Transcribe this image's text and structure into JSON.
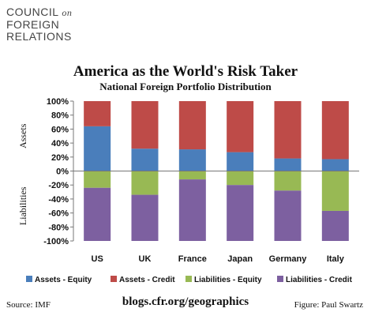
{
  "logo": {
    "line1": "COUNCIL",
    "line1_suffix": "on",
    "line2": "FOREIGN",
    "line3": "RELATIONS"
  },
  "chart_data": {
    "type": "bar",
    "stacked": true,
    "title": "America as the World's Risk Taker",
    "subtitle": "National Foreign Portfolio Distribution",
    "categories": [
      "US",
      "UK",
      "France",
      "Japan",
      "Germany",
      "Italy"
    ],
    "ylim": [
      -100,
      100
    ],
    "yticks": [
      100,
      80,
      60,
      40,
      20,
      0,
      -20,
      -40,
      -60,
      -80,
      -100
    ],
    "ytick_labels": [
      "100%",
      "80%",
      "60%",
      "40%",
      "20%",
      "0%",
      "-20%",
      "-40%",
      "-60%",
      "-80%",
      "-100%"
    ],
    "ylabel_top": "Assets",
    "ylabel_bottom": "Liabilities",
    "grid": false,
    "legend_position": "bottom",
    "series": [
      {
        "name": "Assets - Equity",
        "color": "#4a7ebb",
        "side": "positive",
        "values": [
          64,
          32,
          31,
          27,
          18,
          17
        ]
      },
      {
        "name": "Assets - Credit",
        "color": "#be4b48",
        "side": "positive",
        "values": [
          36,
          68,
          69,
          73,
          82,
          83
        ]
      },
      {
        "name": "Liabilities - Equity",
        "color": "#98b954",
        "side": "negative",
        "values": [
          -24,
          -34,
          -12,
          -20,
          -28,
          -57
        ]
      },
      {
        "name": "Liabilities - Credit",
        "color": "#7d60a0",
        "side": "negative",
        "values": [
          -76,
          -66,
          -88,
          -80,
          -72,
          -43
        ]
      }
    ]
  },
  "footer": {
    "source": "Source: IMF",
    "url": "blogs.cfr.org/geographics",
    "figure": "Figure: Paul Swartz"
  }
}
